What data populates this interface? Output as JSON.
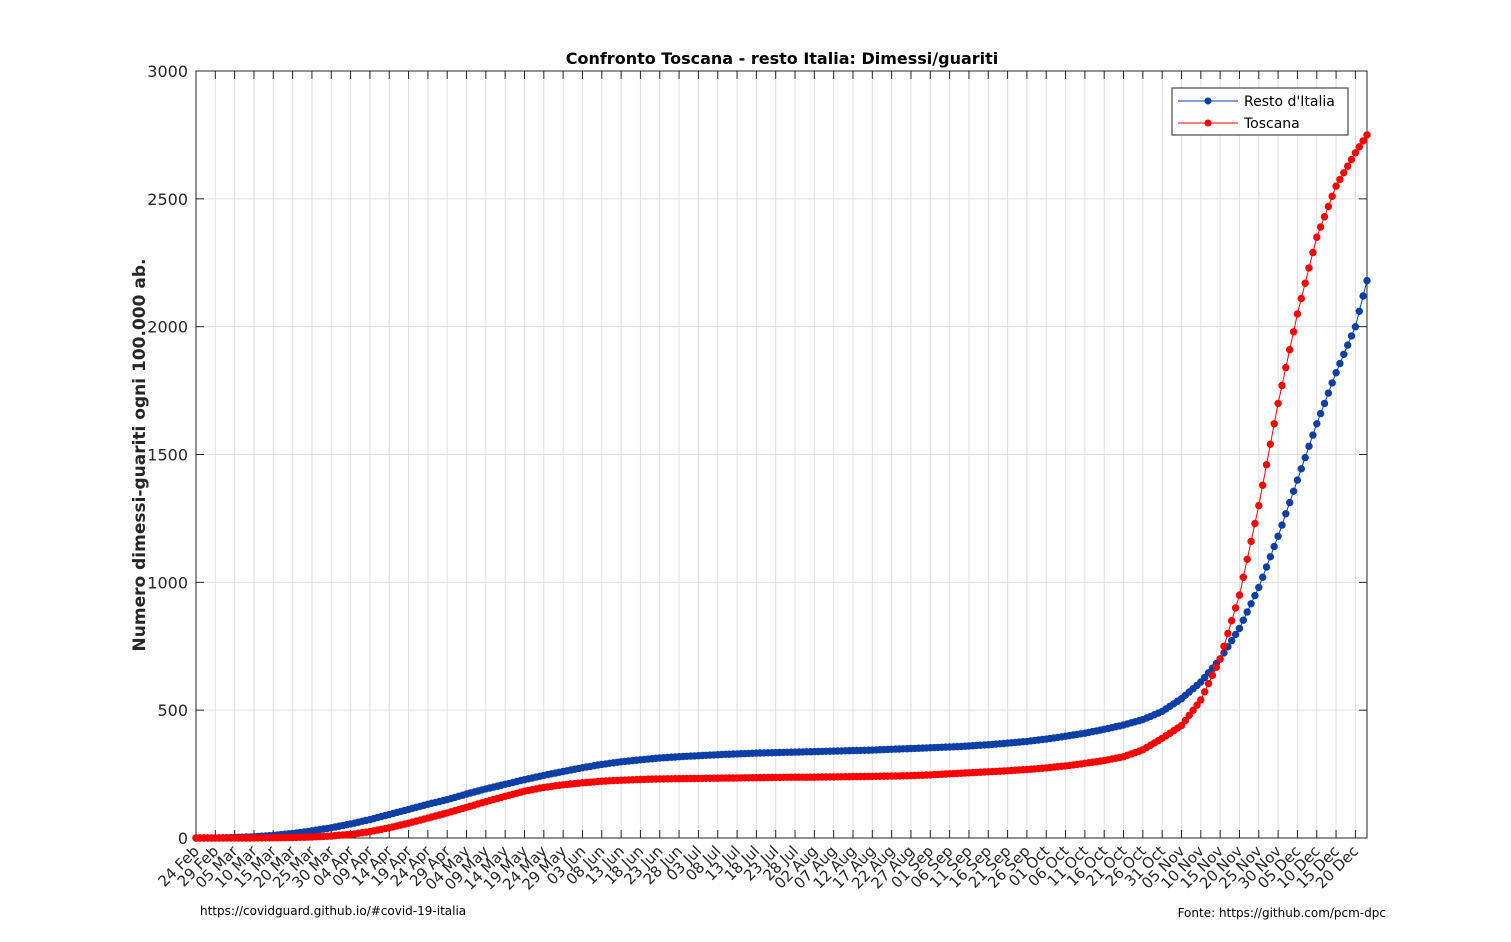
{
  "chart_data": {
    "type": "line",
    "title": "Confronto Toscana - resto Italia: Dimessi/guariti",
    "ylabel": "Numero dimessi-guariti ogni 100.000 ab.",
    "xlabel": "",
    "ylim": [
      0,
      3000
    ],
    "yticks": [
      0,
      500,
      1000,
      1500,
      2000,
      2500,
      3000
    ],
    "ytick_labels": [
      "0",
      "500",
      "1000",
      "1500",
      "2000",
      "2500",
      "3000"
    ],
    "x_start": "24 Feb",
    "x_end": "23 Dec",
    "xtick_labels": [
      "24 Feb",
      "29 Feb",
      "05 Mar",
      "10 Mar",
      "15 Mar",
      "20 Mar",
      "25 Mar",
      "30 Mar",
      "04 Apr",
      "09 Apr",
      "14 Apr",
      "19 Apr",
      "24 Apr",
      "29 Apr",
      "04 May",
      "09 May",
      "14 May",
      "19 May",
      "24 May",
      "29 May",
      "03 Jun",
      "08 Jun",
      "13 Jun",
      "18 Jun",
      "23 Jun",
      "28 Jun",
      "03 Jul",
      "08 Jul",
      "13 Jul",
      "18 Jul",
      "23 Jul",
      "28 Jul",
      "02 Aug",
      "07 Aug",
      "12 Aug",
      "17 Aug",
      "22 Aug",
      "27 Aug",
      "01 Sep",
      "06 Sep",
      "11 Sep",
      "16 Sep",
      "21 Sep",
      "26 Sep",
      "01 Oct",
      "06 Oct",
      "11 Oct",
      "16 Oct",
      "21 Oct",
      "26 Oct",
      "31 Oct",
      "05 Nov",
      "10 Nov",
      "15 Nov",
      "20 Nov",
      "25 Nov",
      "30 Nov",
      "05 Dec",
      "10 Dec",
      "15 Dec",
      "20 Dec"
    ],
    "grid": true,
    "legend_position": "top-right",
    "series": [
      {
        "name": "Resto d'Italia",
        "color": "#0d3fa6",
        "marker": "circle",
        "points": [
          [
            "24 Feb",
            0
          ],
          [
            "29 Feb",
            0
          ],
          [
            "05 Mar",
            2
          ],
          [
            "10 Mar",
            5
          ],
          [
            "15 Mar",
            10
          ],
          [
            "20 Mar",
            18
          ],
          [
            "25 Mar",
            28
          ],
          [
            "30 Mar",
            40
          ],
          [
            "04 Apr",
            55
          ],
          [
            "09 Apr",
            72
          ],
          [
            "14 Apr",
            92
          ],
          [
            "19 Apr",
            112
          ],
          [
            "24 Apr",
            132
          ],
          [
            "29 Apr",
            150
          ],
          [
            "04 May",
            172
          ],
          [
            "09 May",
            192
          ],
          [
            "14 May",
            210
          ],
          [
            "19 May",
            228
          ],
          [
            "24 May",
            245
          ],
          [
            "29 May",
            260
          ],
          [
            "03 Jun",
            275
          ],
          [
            "08 Jun",
            288
          ],
          [
            "13 Jun",
            298
          ],
          [
            "18 Jun",
            306
          ],
          [
            "23 Jun",
            313
          ],
          [
            "28 Jun",
            318
          ],
          [
            "03 Jul",
            322
          ],
          [
            "08 Jul",
            326
          ],
          [
            "13 Jul",
            329
          ],
          [
            "18 Jul",
            332
          ],
          [
            "23 Jul",
            334
          ],
          [
            "28 Jul",
            336
          ],
          [
            "02 Aug",
            338
          ],
          [
            "07 Aug",
            340
          ],
          [
            "12 Aug",
            342
          ],
          [
            "17 Aug",
            344
          ],
          [
            "22 Aug",
            347
          ],
          [
            "27 Aug",
            350
          ],
          [
            "01 Sep",
            353
          ],
          [
            "06 Sep",
            356
          ],
          [
            "11 Sep",
            360
          ],
          [
            "16 Sep",
            365
          ],
          [
            "21 Sep",
            371
          ],
          [
            "26 Sep",
            378
          ],
          [
            "01 Oct",
            387
          ],
          [
            "06 Oct",
            398
          ],
          [
            "11 Oct",
            410
          ],
          [
            "16 Oct",
            425
          ],
          [
            "21 Oct",
            442
          ],
          [
            "26 Oct",
            463
          ],
          [
            "31 Oct",
            495
          ],
          [
            "05 Nov",
            545
          ],
          [
            "10 Nov",
            610
          ],
          [
            "15 Nov",
            700
          ],
          [
            "20 Nov",
            820
          ],
          [
            "25 Nov",
            980
          ],
          [
            "30 Nov",
            1180
          ],
          [
            "05 Dec",
            1400
          ],
          [
            "10 Dec",
            1620
          ],
          [
            "15 Dec",
            1820
          ],
          [
            "20 Dec",
            2000
          ],
          [
            "23 Dec",
            2180
          ]
        ]
      },
      {
        "name": "Toscana",
        "color": "#ff0000",
        "marker": "circle",
        "points": [
          [
            "24 Feb",
            0
          ],
          [
            "29 Feb",
            0
          ],
          [
            "05 Mar",
            0
          ],
          [
            "10 Mar",
            0
          ],
          [
            "15 Mar",
            1
          ],
          [
            "20 Mar",
            2
          ],
          [
            "25 Mar",
            4
          ],
          [
            "30 Mar",
            8
          ],
          [
            "04 Apr",
            14
          ],
          [
            "09 Apr",
            25
          ],
          [
            "14 Apr",
            40
          ],
          [
            "19 Apr",
            58
          ],
          [
            "24 Apr",
            78
          ],
          [
            "29 Apr",
            98
          ],
          [
            "04 May",
            120
          ],
          [
            "09 May",
            142
          ],
          [
            "14 May",
            163
          ],
          [
            "19 May",
            183
          ],
          [
            "24 May",
            198
          ],
          [
            "29 May",
            208
          ],
          [
            "03 Jun",
            216
          ],
          [
            "08 Jun",
            222
          ],
          [
            "13 Jun",
            226
          ],
          [
            "18 Jun",
            229
          ],
          [
            "23 Jun",
            231
          ],
          [
            "28 Jun",
            232
          ],
          [
            "03 Jul",
            233
          ],
          [
            "08 Jul",
            234
          ],
          [
            "13 Jul",
            235
          ],
          [
            "18 Jul",
            236
          ],
          [
            "23 Jul",
            237
          ],
          [
            "28 Jul",
            238
          ],
          [
            "02 Aug",
            238
          ],
          [
            "07 Aug",
            239
          ],
          [
            "12 Aug",
            240
          ],
          [
            "17 Aug",
            241
          ],
          [
            "22 Aug",
            242
          ],
          [
            "27 Aug",
            244
          ],
          [
            "01 Sep",
            247
          ],
          [
            "06 Sep",
            251
          ],
          [
            "11 Sep",
            255
          ],
          [
            "16 Sep",
            259
          ],
          [
            "21 Sep",
            263
          ],
          [
            "26 Sep",
            268
          ],
          [
            "01 Oct",
            274
          ],
          [
            "06 Oct",
            282
          ],
          [
            "11 Oct",
            292
          ],
          [
            "16 Oct",
            303
          ],
          [
            "21 Oct",
            318
          ],
          [
            "26 Oct",
            345
          ],
          [
            "31 Oct",
            390
          ],
          [
            "05 Nov",
            440
          ],
          [
            "10 Nov",
            540
          ],
          [
            "15 Nov",
            700
          ],
          [
            "20 Nov",
            950
          ],
          [
            "25 Nov",
            1300
          ],
          [
            "30 Nov",
            1700
          ],
          [
            "05 Dec",
            2050
          ],
          [
            "10 Dec",
            2350
          ],
          [
            "15 Dec",
            2550
          ],
          [
            "20 Dec",
            2680
          ],
          [
            "23 Dec",
            2750
          ]
        ]
      }
    ]
  },
  "footer": {
    "source_left": "https://covidguard.github.io/#covid-19-italia",
    "source_right": "Fonte: https://github.com/pcm-dpc"
  }
}
